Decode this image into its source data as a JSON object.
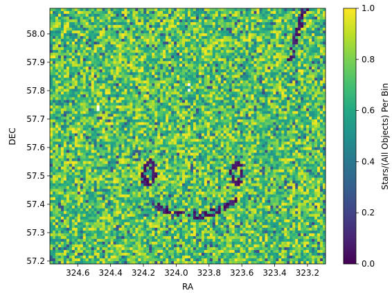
{
  "chart_data": {
    "type": "heatmap",
    "title": "",
    "xlabel": "RA",
    "ylabel": "DEC",
    "x_ticks": [
      324.6,
      324.4,
      324.2,
      324.0,
      323.8,
      323.6,
      323.4,
      323.2
    ],
    "x_tick_labels": [
      "324.6",
      "324.4",
      "324.2",
      "324.0",
      "323.8",
      "323.6",
      "323.4",
      "323.2"
    ],
    "y_ticks": [
      57.2,
      57.3,
      57.4,
      57.5,
      57.6,
      57.7,
      57.8,
      57.9,
      58.0
    ],
    "y_tick_labels": [
      "57.2",
      "57.3",
      "57.4",
      "57.5",
      "57.6",
      "57.7",
      "57.8",
      "57.9",
      "58.0"
    ],
    "xlim": [
      324.77,
      323.09
    ],
    "ylim": [
      57.19,
      58.09
    ],
    "x_inverted": true,
    "colormap": "viridis",
    "colorbar": {
      "label": "Stars/(All Objects) Per Bin",
      "range": [
        0.0,
        1.0
      ],
      "ticks": [
        0.0,
        0.2,
        0.4,
        0.6,
        0.8,
        1.0
      ],
      "tick_labels": [
        "0.0",
        "0.2",
        "0.4",
        "0.6",
        "0.8",
        "1.0"
      ]
    },
    "grid": "off",
    "typical_value_range": [
      0.5,
      0.95
    ],
    "features": [
      {
        "description": "ring of low values",
        "ra": 324.17,
        "dec": 57.51
      },
      {
        "description": "ring of low values",
        "ra": 323.63,
        "dec": 57.51
      },
      {
        "description": "empty bins (white)",
        "ra": 323.92,
        "dec": 57.81
      },
      {
        "description": "empty bins (white)",
        "ra": 324.47,
        "dec": 57.74
      },
      {
        "description": "arc of low values",
        "ra": 323.9,
        "dec": 57.42
      },
      {
        "description": "dark streak",
        "ra": 323.27,
        "dec": 57.98
      }
    ]
  }
}
